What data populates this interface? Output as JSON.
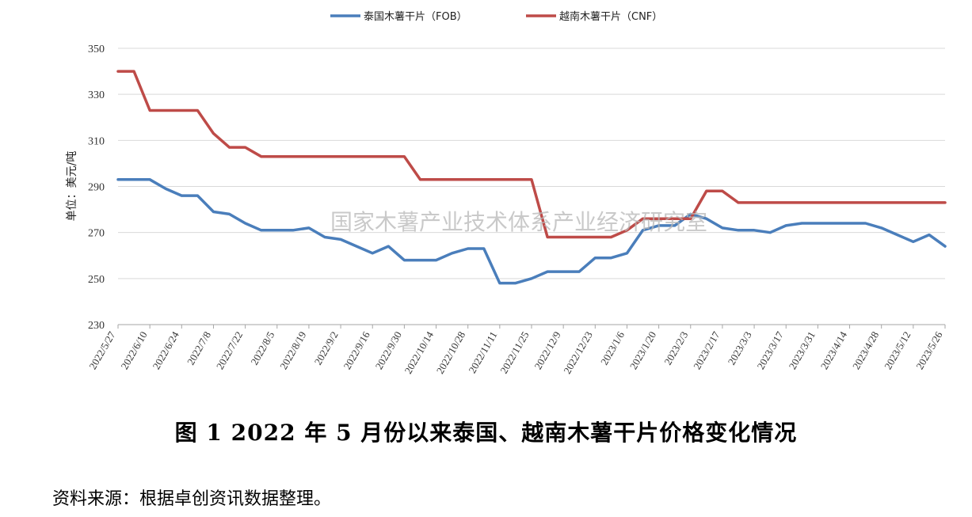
{
  "chart_data": {
    "type": "line",
    "ylabel": "单位：美元/吨",
    "ylim": [
      230,
      350
    ],
    "yticks": [
      230,
      250,
      270,
      290,
      310,
      330,
      350
    ],
    "x_tick_labels": [
      "2022/5/27",
      "2022/6/10",
      "2022/6/24",
      "2022/7/8",
      "2022/7/22",
      "2022/8/5",
      "2022/8/19",
      "2022/9/2",
      "2022/9/16",
      "2022/9/30",
      "2022/10/14",
      "2022/10/28",
      "2022/11/11",
      "2022/11/25",
      "2022/12/9",
      "2022/12/23",
      "2023/1/6",
      "2023/1/20",
      "2023/2/3",
      "2023/2/17",
      "2023/3/3",
      "2023/3/17",
      "2023/3/31",
      "2023/4/14",
      "2023/4/28",
      "2023/5/12",
      "2023/5/26"
    ],
    "grid": "horizontal",
    "legend_position": "top",
    "series": [
      {
        "name": "泰国木薯干片（FOB）",
        "color": "#4a7ebb",
        "values": [
          293,
          293,
          293,
          289,
          286,
          286,
          279,
          278,
          274,
          271,
          271,
          271,
          272,
          268,
          267,
          264,
          261,
          264,
          258,
          258,
          258,
          261,
          263,
          263,
          248,
          248,
          250,
          253,
          253,
          253,
          259,
          259,
          261,
          271,
          273,
          273,
          278,
          276,
          272,
          271,
          271,
          270,
          273,
          274,
          274,
          274,
          274,
          274,
          272,
          269,
          266,
          269,
          264
        ]
      },
      {
        "name": "越南木薯干片（CNF）",
        "color": "#be4b48",
        "values": [
          340,
          340,
          323,
          323,
          323,
          323,
          313,
          307,
          307,
          303,
          303,
          303,
          303,
          303,
          303,
          303,
          303,
          303,
          303,
          293,
          293,
          293,
          293,
          293,
          293,
          293,
          293,
          268,
          268,
          268,
          268,
          268,
          271,
          276,
          276,
          276,
          276,
          288,
          288,
          283,
          283,
          283,
          283,
          283,
          283,
          283,
          283,
          283,
          283,
          283,
          283,
          283,
          283
        ]
      }
    ]
  },
  "watermark": "国家木薯产业技术体系产业经济研究室",
  "caption": "图 1    2022 年 5 月份以来泰国、越南木薯干片价格变化情况",
  "source": "资料来源：根据卓创资讯数据整理。"
}
